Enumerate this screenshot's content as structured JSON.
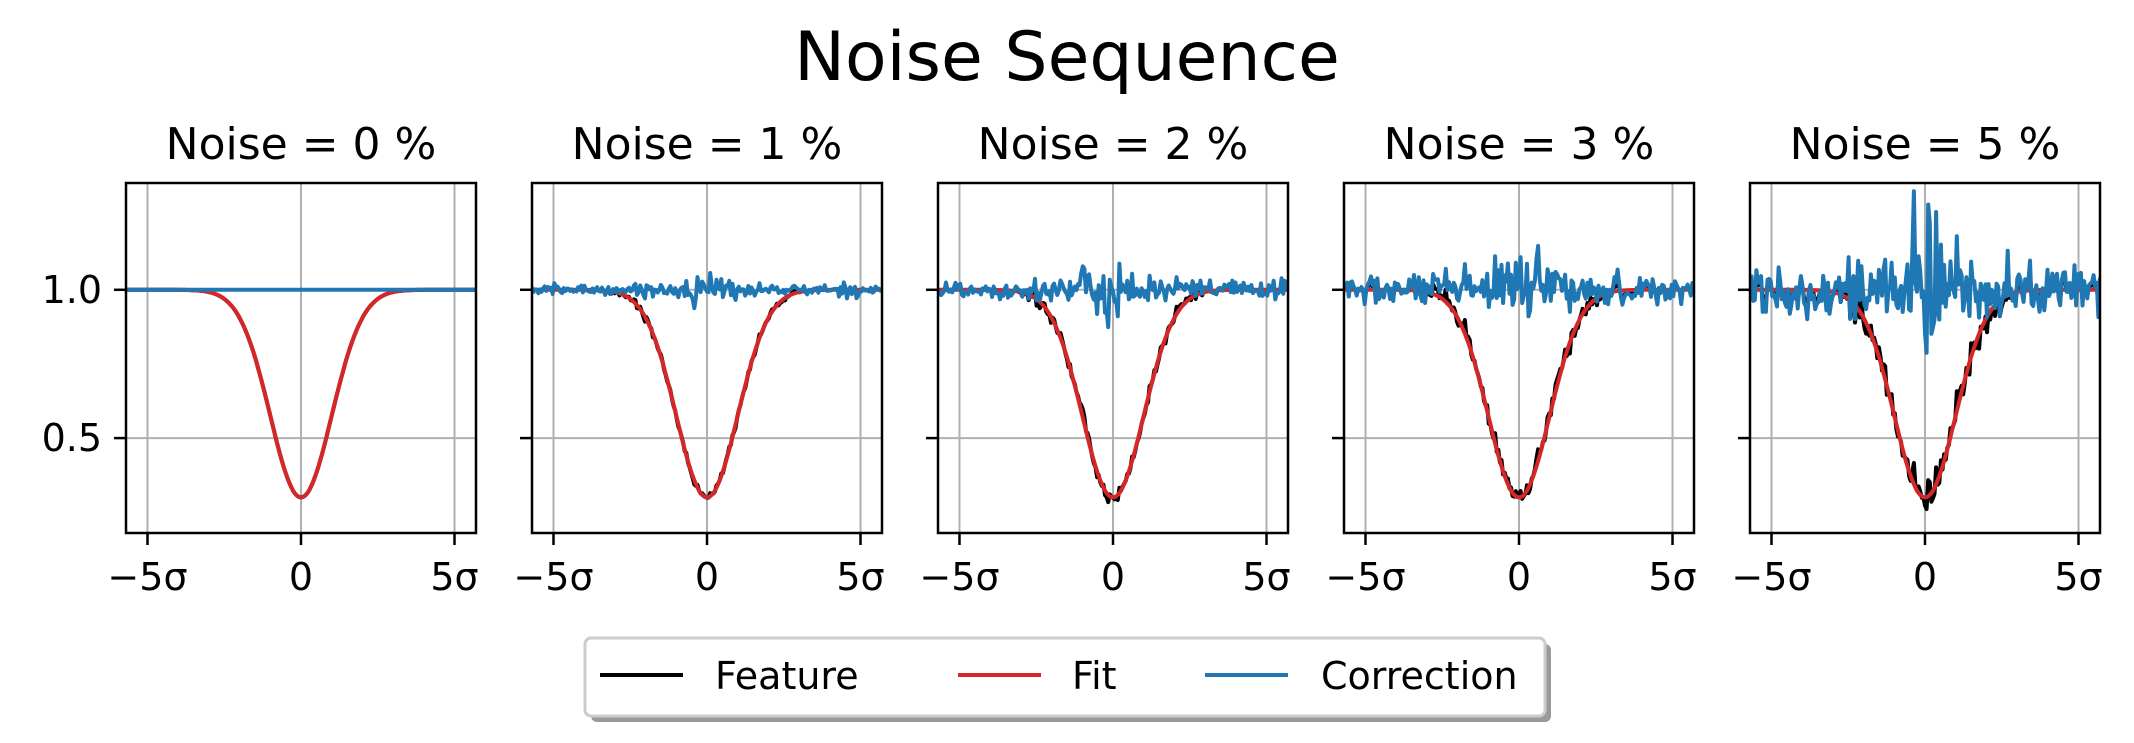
{
  "chart_data": {
    "type": "line",
    "title": "Noise Sequence",
    "x_range_sigma": [
      -5.7,
      5.7
    ],
    "ylim": [
      0.18,
      1.36
    ],
    "grid": true,
    "legend": {
      "placement": "bottom-center",
      "shadow": true,
      "entries": [
        {
          "label": "Feature",
          "color": "#000000"
        },
        {
          "label": "Fit",
          "color": "#d62728"
        },
        {
          "label": "Correction",
          "color": "#1f77b4"
        }
      ]
    },
    "yticks": [
      {
        "value": 0.5,
        "label": "0.5"
      },
      {
        "value": 1.0,
        "label": "1.0"
      }
    ],
    "xticks": [
      {
        "value": -5,
        "label": "−5σ"
      },
      {
        "value": 0,
        "label": "0"
      },
      {
        "value": 5,
        "label": "5σ"
      }
    ],
    "model": {
      "description_of_curves": "Feature and Fit: 1 - 0.7*exp(-x^2/2) (Gaussian absorption dip, minimum 0.30 at x=0). Correction: ratio near 1.0.",
      "depth": 0.7,
      "min_value": 0.3,
      "sigma": 1
    },
    "panels": [
      {
        "title": "Noise = 0 %",
        "noise": 0
      },
      {
        "title": "Noise = 1 %",
        "noise": 1
      },
      {
        "title": "Noise = 2 %",
        "noise": 2
      },
      {
        "title": "Noise = 3 %",
        "noise": 3
      },
      {
        "title": "Noise = 5 %",
        "noise": 5
      }
    ]
  }
}
